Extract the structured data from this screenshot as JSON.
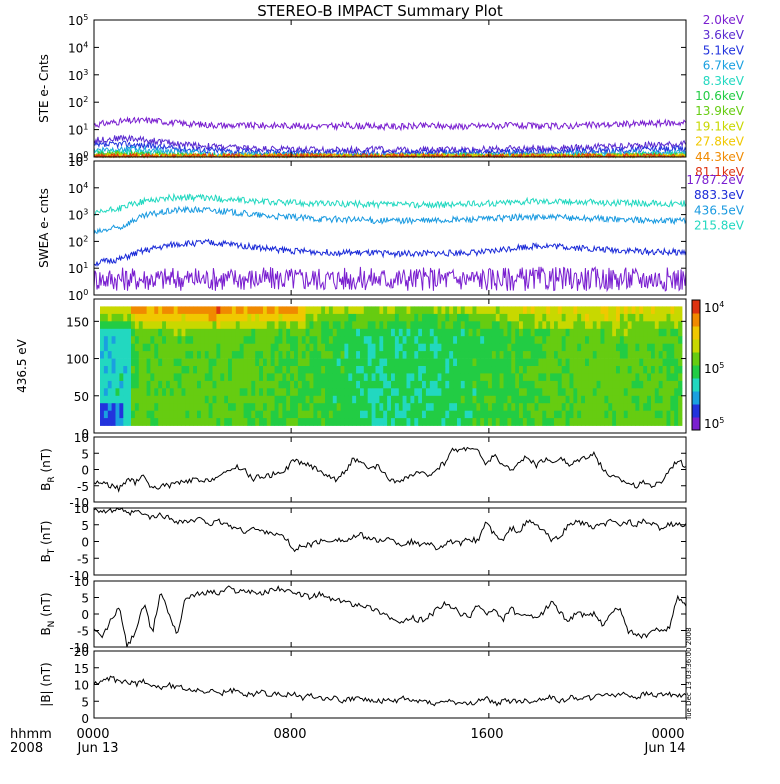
{
  "title": "STEREO-B IMPACT Summary Plot",
  "footer": {
    "left_top": "hhmm",
    "left_bottom": "2008",
    "x_ticks": [
      "0000",
      "0800",
      "1600",
      "0000"
    ],
    "x_dates": [
      "Jun 13",
      "",
      "",
      "Jun 14"
    ],
    "timestamp": "Tue Dec 13 03:36:00 2008"
  },
  "chart_data": [
    {
      "id": "ste",
      "type": "line",
      "ylabel": "STE e- Cnts",
      "yscale": "log",
      "ylim": [
        1,
        100000
      ],
      "ytick_exponents": [
        0,
        1,
        2,
        3,
        4,
        5
      ],
      "series": [
        {
          "name": "2.0keV",
          "color": "#7a1fd0",
          "values": [
            15,
            20,
            22,
            17,
            15,
            14,
            14,
            14,
            13,
            14,
            13,
            13,
            14,
            13,
            14,
            14,
            13,
            14,
            15,
            16,
            17,
            18
          ]
        },
        {
          "name": "3.6keV",
          "color": "#5a2ad0",
          "values": [
            4,
            5,
            4,
            3,
            2.5,
            2.2,
            2,
            2,
            1.8,
            1.8,
            1.9,
            1.8,
            1.8,
            1.9,
            1.9,
            2,
            2.1,
            2.2,
            2.4,
            2.6,
            2.8,
            3
          ]
        },
        {
          "name": "5.1keV",
          "color": "#2233dd",
          "values": [
            2.5,
            3,
            2.5,
            2,
            1.8,
            1.6,
            1.5,
            1.5,
            1.4,
            1.4,
            1.4,
            1.4,
            1.4,
            1.5,
            1.5,
            1.5,
            1.6,
            1.6,
            1.7,
            1.8,
            1.9,
            2
          ]
        },
        {
          "name": "6.7keV",
          "color": "#1aa0e0",
          "values": [
            1.8,
            2,
            1.8,
            1.5,
            1.3,
            1.2,
            1.2,
            1.2,
            1.1,
            1.1,
            1.1,
            1.1,
            1.1,
            1.2,
            1.2,
            1.2,
            1.2,
            1.3,
            1.3,
            1.4,
            1.4,
            1.5
          ]
        },
        {
          "name": "8.3keV",
          "color": "#22d8c0",
          "values": [
            1.4,
            1.5,
            1.4,
            1.2,
            1.1,
            1.05,
            1.05,
            1.05,
            1,
            1,
            1,
            1,
            1,
            1.05,
            1.05,
            1.05,
            1.1,
            1.1,
            1.1,
            1.2,
            1.2,
            1.3
          ]
        },
        {
          "name": "10.6keV",
          "color": "#22cc44",
          "values": [
            1.2,
            1.3,
            1.2,
            1.1,
            1,
            1,
            1,
            1,
            1,
            1,
            1,
            1,
            1,
            1,
            1,
            1,
            1,
            1,
            1,
            1.1,
            1.1,
            1.1
          ]
        },
        {
          "name": "13.9keV",
          "color": "#66cc11",
          "values": [
            1.1,
            1.2,
            1.1,
            1,
            1,
            1,
            1,
            1,
            1,
            1,
            1,
            1,
            1,
            1,
            1,
            1,
            1,
            1,
            1,
            1,
            1,
            1
          ]
        },
        {
          "name": "19.1keV",
          "color": "#c8d800",
          "values": [
            1,
            1.1,
            1,
            1,
            1,
            1,
            1,
            1,
            1,
            1,
            1,
            1,
            1,
            1,
            1,
            1,
            1,
            1,
            1,
            1,
            1,
            1
          ]
        },
        {
          "name": "27.8keV",
          "color": "#f0c800",
          "values": [
            1,
            1,
            1,
            1,
            1,
            1,
            1,
            1,
            1,
            1,
            1,
            1,
            1,
            1,
            1,
            1,
            1,
            1,
            1,
            1,
            1,
            1
          ]
        },
        {
          "name": "44.3keV",
          "color": "#f08a00",
          "values": [
            1,
            1,
            1,
            1,
            1,
            1,
            1,
            1,
            1,
            1,
            1,
            1,
            1,
            1,
            1,
            1,
            1,
            1,
            1,
            1,
            1,
            1
          ]
        },
        {
          "name": "81.1keV",
          "color": "#dd3311",
          "values": [
            1,
            1,
            1,
            1,
            1,
            1,
            1,
            1,
            1,
            1,
            1,
            1,
            1,
            1,
            1,
            1,
            1,
            1,
            1,
            1,
            1,
            1
          ]
        }
      ]
    },
    {
      "id": "swea",
      "type": "line",
      "ylabel": "SWEA e- cnts",
      "yscale": "log",
      "ylim": [
        1,
        100000
      ],
      "ytick_exponents": [
        0,
        1,
        2,
        3,
        4,
        5
      ],
      "series": [
        {
          "name": "1787.2eV",
          "color": "#7a1fd0",
          "values": [
            4,
            4,
            4,
            4,
            4,
            4,
            4,
            4,
            4,
            4,
            4,
            4,
            4,
            4,
            4,
            4,
            4,
            4,
            4,
            4,
            4,
            4
          ]
        },
        {
          "name": "883.3eV",
          "color": "#1a2ad8",
          "values": [
            15,
            22,
            50,
            80,
            90,
            75,
            55,
            45,
            40,
            38,
            36,
            35,
            35,
            38,
            40,
            60,
            70,
            60,
            50,
            45,
            40,
            40
          ]
        },
        {
          "name": "436.5eV",
          "color": "#1a9ae0",
          "values": [
            200,
            350,
            1000,
            1500,
            1500,
            1200,
            900,
            800,
            700,
            650,
            600,
            600,
            600,
            650,
            700,
            800,
            800,
            750,
            700,
            650,
            600,
            600
          ]
        },
        {
          "name": "215.8eV",
          "color": "#22d8c0",
          "values": [
            1000,
            1800,
            3500,
            4500,
            4200,
            3500,
            3000,
            2800,
            2600,
            2500,
            2400,
            2300,
            2300,
            2400,
            2600,
            3000,
            3200,
            3000,
            2800,
            2700,
            2600,
            2600
          ]
        }
      ]
    },
    {
      "id": "pad",
      "type": "heatmap",
      "ylabel": "436.5 eV",
      "ylim": [
        0,
        180
      ],
      "yticks": [
        0,
        50,
        100,
        150
      ],
      "colorbar_labels": [
        "10",
        "10",
        "10"
      ],
      "colorbar_exponents": [
        "4",
        "5",
        "5"
      ],
      "colormap": [
        "#7a1fd0",
        "#2233dd",
        "#1aa0e0",
        "#22d8c0",
        "#22cc44",
        "#66cc11",
        "#c8d800",
        "#f0c800",
        "#f08a00",
        "#dd3311"
      ]
    },
    {
      "id": "br",
      "type": "line",
      "ylabel": "B",
      "ylabel_sub": "R",
      "ylabel_unit": " (nT)",
      "ylim": [
        -10,
        10
      ],
      "yticks": [
        -10,
        -5,
        0,
        5,
        10
      ],
      "series": [
        {
          "color": "#000000",
          "values": [
            -4,
            -4,
            -5,
            -6,
            -3,
            -4,
            -2,
            -6,
            -5,
            -5,
            -4,
            -4,
            -3,
            -4,
            -3,
            -2,
            -1,
            1,
            0,
            -3,
            -2,
            -2,
            -1,
            0,
            3,
            2,
            1,
            0,
            -2,
            -3,
            -1,
            3,
            2,
            0,
            1,
            -2,
            -4,
            -3,
            -2,
            -1,
            -2,
            0,
            2,
            6,
            6,
            7,
            6,
            1,
            5,
            1,
            0,
            2,
            4,
            1,
            3,
            2,
            4,
            1,
            3,
            4,
            5,
            0,
            -2,
            -3,
            -4,
            -5,
            -4,
            -5,
            -4,
            0,
            3,
            1
          ]
        }
      ]
    },
    {
      "id": "bt",
      "type": "line",
      "ylabel": "B",
      "ylabel_sub": "T",
      "ylabel_unit": " (nT)",
      "ylim": [
        -10,
        10
      ],
      "yticks": [
        -10,
        -5,
        0,
        5,
        10
      ],
      "series": [
        {
          "color": "#000000",
          "values": [
            10,
            9,
            9,
            10,
            8,
            9,
            8,
            7,
            8,
            7,
            6,
            6,
            6,
            7,
            5,
            6,
            5,
            4,
            3,
            4,
            3,
            3,
            2,
            1,
            -3,
            -1,
            -1,
            0,
            0,
            1,
            0,
            1,
            2,
            1,
            0,
            1,
            0,
            -1,
            0,
            -1,
            0,
            -2,
            -1,
            0,
            -1,
            1,
            0,
            6,
            2,
            0,
            4,
            3,
            6,
            5,
            3,
            0,
            2,
            5,
            6,
            5,
            4,
            5,
            6,
            5,
            6,
            5,
            6,
            5,
            4,
            5,
            5,
            5
          ]
        }
      ]
    },
    {
      "id": "bn",
      "type": "line",
      "ylabel": "B",
      "ylabel_sub": "N",
      "ylabel_unit": " (nT)",
      "ylim": [
        -10,
        10
      ],
      "yticks": [
        -10,
        -5,
        0,
        5,
        10
      ],
      "series": [
        {
          "color": "#000000",
          "values": [
            -5,
            -7,
            -2,
            2,
            -10,
            -5,
            3,
            -6,
            7,
            0,
            -6,
            5,
            6,
            6,
            7,
            6,
            8,
            7,
            7,
            7,
            6,
            7,
            8,
            7,
            6,
            6,
            5,
            6,
            5,
            4,
            4,
            3,
            3,
            2,
            1,
            0,
            -2,
            -3,
            -1,
            -2,
            -1,
            1,
            3,
            2,
            0,
            -1,
            3,
            0,
            1,
            -2,
            2,
            -1,
            0,
            -2,
            1,
            4,
            0,
            -2,
            1,
            -1,
            0,
            -3,
            0,
            2,
            -5,
            -6,
            -7,
            -5,
            -5,
            -4,
            5,
            3
          ]
        }
      ]
    },
    {
      "id": "bmag",
      "type": "line",
      "ylabel": "|B| (nT)",
      "ylim": [
        0,
        20
      ],
      "yticks": [
        0,
        5,
        10,
        15,
        20
      ],
      "series": [
        {
          "color": "#000000",
          "values": [
            10,
            11,
            12,
            11,
            11,
            10,
            11,
            10,
            9,
            10,
            9,
            9,
            8,
            8,
            8,
            7,
            8,
            8,
            7,
            7,
            8,
            7,
            7,
            7,
            7,
            6,
            7,
            6,
            6,
            6,
            5,
            6,
            6,
            5,
            5,
            5,
            5,
            6,
            5,
            5,
            5,
            4,
            5,
            5,
            4,
            4,
            5,
            6,
            4,
            5,
            5,
            5,
            5,
            5,
            6,
            6,
            5,
            6,
            6,
            6,
            6,
            7,
            7,
            7,
            7,
            6,
            7,
            7,
            7,
            7,
            7,
            7
          ]
        }
      ]
    }
  ]
}
